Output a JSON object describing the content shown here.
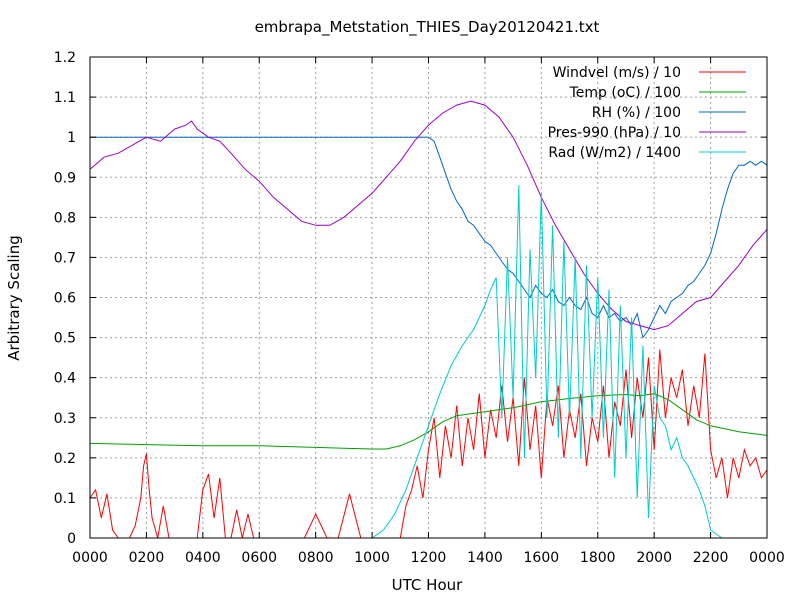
{
  "chart_data": {
    "type": "line",
    "title": "embrapa_Metstation_THIES_Day20120421.txt",
    "xlabel": "UTC Hour",
    "ylabel": "Arbitrary Scaling",
    "xlim": [
      0,
      24
    ],
    "ylim": [
      0,
      1.2
    ],
    "grid": true,
    "legend_position": "top-right",
    "x_ticks": [
      {
        "value": 0,
        "label": "0000"
      },
      {
        "value": 2,
        "label": "0200"
      },
      {
        "value": 4,
        "label": "0400"
      },
      {
        "value": 6,
        "label": "0600"
      },
      {
        "value": 8,
        "label": "0800"
      },
      {
        "value": 10,
        "label": "1000"
      },
      {
        "value": 12,
        "label": "1200"
      },
      {
        "value": 14,
        "label": "1400"
      },
      {
        "value": 16,
        "label": "1600"
      },
      {
        "value": 18,
        "label": "1800"
      },
      {
        "value": 20,
        "label": "2000"
      },
      {
        "value": 22,
        "label": "2200"
      },
      {
        "value": 24,
        "label": "0000"
      }
    ],
    "y_ticks": [
      {
        "value": 0,
        "label": "0"
      },
      {
        "value": 0.1,
        "label": "0.1"
      },
      {
        "value": 0.2,
        "label": "0.2"
      },
      {
        "value": 0.3,
        "label": "0.3"
      },
      {
        "value": 0.4,
        "label": "0.4"
      },
      {
        "value": 0.5,
        "label": "0.5"
      },
      {
        "value": 0.6,
        "label": "0.6"
      },
      {
        "value": 0.7,
        "label": "0.7"
      },
      {
        "value": 0.8,
        "label": "0.8"
      },
      {
        "value": 0.9,
        "label": "0.9"
      },
      {
        "value": 1,
        "label": "1"
      },
      {
        "value": 1.1,
        "label": "1.1"
      },
      {
        "value": 1.2,
        "label": "1.2"
      }
    ],
    "series": [
      {
        "name": "Windvel (m/s) / 10",
        "color": "#ff0000",
        "x": [
          0,
          0.2,
          0.4,
          0.6,
          0.8,
          1.0,
          1.2,
          1.4,
          1.6,
          1.8,
          1.9,
          2.0,
          2.1,
          2.2,
          2.4,
          2.6,
          2.8,
          3.0,
          3.4,
          3.8,
          4.0,
          4.2,
          4.4,
          4.6,
          4.8,
          5.0,
          5.2,
          5.4,
          5.6,
          5.8,
          6.0,
          6.4,
          6.8,
          7.2,
          7.6,
          8.0,
          8.4,
          8.8,
          9.2,
          9.6,
          10.0,
          10.4,
          10.8,
          11.0,
          11.2,
          11.4,
          11.6,
          11.8,
          12.0,
          12.2,
          12.4,
          12.6,
          12.8,
          13.0,
          13.2,
          13.4,
          13.6,
          13.8,
          14.0,
          14.2,
          14.4,
          14.6,
          14.8,
          15.0,
          15.2,
          15.4,
          15.6,
          15.8,
          16.0,
          16.2,
          16.4,
          16.6,
          16.8,
          17.0,
          17.2,
          17.4,
          17.6,
          17.8,
          18.0,
          18.2,
          18.4,
          18.6,
          18.8,
          19.0,
          19.2,
          19.4,
          19.6,
          19.8,
          20.0,
          20.2,
          20.4,
          20.6,
          20.8,
          21.0,
          21.2,
          21.4,
          21.6,
          21.8,
          22.0,
          22.2,
          22.4,
          22.6,
          22.8,
          23.0,
          23.2,
          23.4,
          23.6,
          23.8,
          24.0
        ],
        "values": [
          0.1,
          0.12,
          0.05,
          0.11,
          0.02,
          0.0,
          0.0,
          0.0,
          0.03,
          0.1,
          0.18,
          0.21,
          0.12,
          0.05,
          0.0,
          0.08,
          0.0,
          0.0,
          0.0,
          0.0,
          0.12,
          0.16,
          0.05,
          0.15,
          0.0,
          0.0,
          0.07,
          0.0,
          0.06,
          0.0,
          0.0,
          0.0,
          0.0,
          0.0,
          0.0,
          0.06,
          0.0,
          0.0,
          0.11,
          0.0,
          0.0,
          0.0,
          0.0,
          0.0,
          0.08,
          0.12,
          0.18,
          0.1,
          0.22,
          0.3,
          0.15,
          0.28,
          0.2,
          0.33,
          0.18,
          0.3,
          0.22,
          0.36,
          0.2,
          0.32,
          0.25,
          0.38,
          0.24,
          0.35,
          0.18,
          0.4,
          0.22,
          0.33,
          0.15,
          0.35,
          0.28,
          0.38,
          0.2,
          0.32,
          0.25,
          0.36,
          0.18,
          0.3,
          0.24,
          0.38,
          0.2,
          0.34,
          0.28,
          0.42,
          0.25,
          0.4,
          0.3,
          0.45,
          0.22,
          0.47,
          0.3,
          0.4,
          0.35,
          0.42,
          0.28,
          0.38,
          0.3,
          0.46,
          0.22,
          0.15,
          0.2,
          0.1,
          0.2,
          0.15,
          0.22,
          0.18,
          0.2,
          0.15,
          0.17
        ]
      },
      {
        "name": "Temp (oC) / 100",
        "color": "#00a000",
        "x": [
          0,
          2,
          4,
          6,
          8,
          9,
          10,
          10.5,
          11,
          11.5,
          12,
          12.5,
          13,
          13.5,
          14,
          15,
          16,
          17,
          18,
          19,
          19.5,
          20,
          20.5,
          21,
          21.5,
          22,
          23,
          24
        ],
        "values": [
          0.236,
          0.233,
          0.23,
          0.23,
          0.226,
          0.224,
          0.222,
          0.222,
          0.23,
          0.245,
          0.265,
          0.29,
          0.305,
          0.31,
          0.315,
          0.325,
          0.34,
          0.348,
          0.355,
          0.358,
          0.355,
          0.36,
          0.345,
          0.32,
          0.295,
          0.28,
          0.265,
          0.256
        ]
      },
      {
        "name": "RH (%) / 100",
        "color": "#0066cc",
        "x": [
          0,
          2,
          4,
          6,
          8,
          10,
          11,
          11.5,
          11.8,
          12.0,
          12.2,
          12.4,
          12.6,
          12.8,
          13.0,
          13.2,
          13.4,
          13.6,
          13.8,
          14.0,
          14.2,
          14.4,
          14.6,
          14.8,
          15.0,
          15.2,
          15.4,
          15.6,
          15.8,
          16.0,
          16.2,
          16.4,
          16.6,
          16.8,
          17.0,
          17.2,
          17.4,
          17.6,
          17.8,
          18.0,
          18.2,
          18.4,
          18.6,
          18.8,
          19.0,
          19.2,
          19.4,
          19.6,
          19.8,
          20.0,
          20.2,
          20.4,
          20.6,
          20.8,
          21.0,
          21.2,
          21.4,
          21.6,
          21.8,
          22.0,
          22.2,
          22.4,
          22.6,
          22.8,
          23.0,
          23.2,
          23.4,
          23.6,
          23.8,
          24.0
        ],
        "values": [
          1.0,
          1.0,
          1.0,
          1.0,
          1.0,
          1.0,
          1.0,
          1.0,
          1.0,
          1.0,
          0.99,
          0.95,
          0.91,
          0.87,
          0.84,
          0.82,
          0.79,
          0.78,
          0.76,
          0.74,
          0.73,
          0.71,
          0.69,
          0.67,
          0.66,
          0.64,
          0.62,
          0.6,
          0.63,
          0.61,
          0.6,
          0.62,
          0.59,
          0.58,
          0.6,
          0.58,
          0.57,
          0.6,
          0.56,
          0.55,
          0.58,
          0.55,
          0.56,
          0.54,
          0.55,
          0.53,
          0.56,
          0.5,
          0.52,
          0.55,
          0.58,
          0.56,
          0.59,
          0.6,
          0.61,
          0.63,
          0.64,
          0.66,
          0.68,
          0.71,
          0.76,
          0.82,
          0.87,
          0.91,
          0.93,
          0.93,
          0.94,
          0.93,
          0.94,
          0.93
        ]
      },
      {
        "name": "Pres-990 (hPa) / 10",
        "color": "#9900cc",
        "x": [
          0,
          0.5,
          1.0,
          1.5,
          2.0,
          2.5,
          3.0,
          3.4,
          3.6,
          3.8,
          4.2,
          4.6,
          5.0,
          5.5,
          6.0,
          6.5,
          7.0,
          7.5,
          8.0,
          8.5,
          9.0,
          9.5,
          10.0,
          10.5,
          11.0,
          11.5,
          12.0,
          12.5,
          13.0,
          13.5,
          14.0,
          14.5,
          15.0,
          15.5,
          16.0,
          16.5,
          17.0,
          17.5,
          18.0,
          18.5,
          19.0,
          19.5,
          20.0,
          20.5,
          21.0,
          21.5,
          22.0,
          22.5,
          23.0,
          23.5,
          24.0
        ],
        "values": [
          0.92,
          0.95,
          0.96,
          0.98,
          1.0,
          0.99,
          1.02,
          1.03,
          1.04,
          1.02,
          1.0,
          0.99,
          0.96,
          0.92,
          0.89,
          0.85,
          0.82,
          0.79,
          0.78,
          0.78,
          0.8,
          0.83,
          0.86,
          0.9,
          0.94,
          0.99,
          1.03,
          1.06,
          1.08,
          1.09,
          1.08,
          1.05,
          1.0,
          0.93,
          0.85,
          0.78,
          0.72,
          0.66,
          0.61,
          0.57,
          0.54,
          0.53,
          0.52,
          0.53,
          0.56,
          0.59,
          0.6,
          0.64,
          0.68,
          0.73,
          0.77
        ]
      },
      {
        "name": "Rad (W/m2) / 1400",
        "color": "#00cccc",
        "x": [
          0,
          2,
          4,
          6,
          8,
          9.5,
          10.0,
          10.4,
          10.8,
          11.2,
          11.6,
          12.0,
          12.4,
          12.8,
          13.2,
          13.6,
          14.0,
          14.2,
          14.4,
          14.6,
          14.8,
          15.0,
          15.2,
          15.4,
          15.6,
          15.8,
          16.0,
          16.2,
          16.4,
          16.6,
          16.8,
          17.0,
          17.2,
          17.4,
          17.6,
          17.8,
          18.0,
          18.2,
          18.4,
          18.6,
          18.8,
          19.0,
          19.2,
          19.4,
          19.6,
          19.8,
          20.0,
          20.2,
          20.4,
          20.6,
          20.8,
          21.0,
          21.2,
          21.4,
          21.6,
          21.8,
          22.0,
          22.4,
          23.0,
          24.0
        ],
        "values": [
          0,
          0,
          0,
          0,
          0,
          0,
          0.0,
          0.02,
          0.06,
          0.12,
          0.2,
          0.28,
          0.36,
          0.43,
          0.48,
          0.52,
          0.58,
          0.62,
          0.65,
          0.3,
          0.7,
          0.35,
          0.88,
          0.2,
          0.72,
          0.4,
          0.86,
          0.3,
          0.78,
          0.25,
          0.74,
          0.3,
          0.7,
          0.2,
          0.68,
          0.3,
          0.65,
          0.25,
          0.62,
          0.15,
          0.58,
          0.2,
          0.55,
          0.1,
          0.48,
          0.05,
          0.38,
          0.3,
          0.28,
          0.22,
          0.25,
          0.2,
          0.18,
          0.15,
          0.12,
          0.08,
          0.02,
          0.0,
          0,
          0
        ]
      }
    ]
  }
}
